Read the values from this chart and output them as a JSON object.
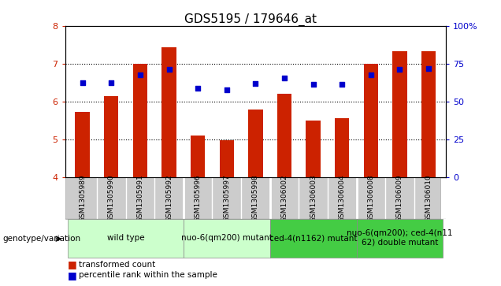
{
  "title": "GDS5195 / 179646_at",
  "samples": [
    "GSM1305989",
    "GSM1305990",
    "GSM1305991",
    "GSM1305992",
    "GSM1305996",
    "GSM1305997",
    "GSM1305998",
    "GSM1306002",
    "GSM1306003",
    "GSM1306004",
    "GSM1306008",
    "GSM1306009",
    "GSM1306010"
  ],
  "bar_values": [
    5.72,
    6.14,
    7.0,
    7.44,
    5.1,
    4.98,
    5.79,
    6.21,
    5.5,
    5.57,
    7.0,
    7.33,
    7.33
  ],
  "dot_values": [
    6.5,
    6.5,
    6.7,
    6.85,
    6.35,
    6.3,
    6.48,
    6.62,
    6.45,
    6.45,
    6.7,
    6.85,
    6.88
  ],
  "bar_bottom": 4.0,
  "ylim_left": [
    4,
    8
  ],
  "ylim_right": [
    0,
    100
  ],
  "yticks_left": [
    4,
    5,
    6,
    7,
    8
  ],
  "yticks_right": [
    0,
    25,
    50,
    75,
    100
  ],
  "bar_color": "#cc2200",
  "dot_color": "#0000cc",
  "groups": [
    {
      "label": "wild type",
      "start": 0,
      "end": 3,
      "color": "#ccffcc"
    },
    {
      "label": "nuo-6(qm200) mutant",
      "start": 4,
      "end": 6,
      "color": "#ccffcc"
    },
    {
      "label": "ced-4(n1162) mutant",
      "start": 7,
      "end": 9,
      "color": "#44cc44"
    },
    {
      "label": "nuo-6(qm200); ced-4(n11\n62) double mutant",
      "start": 10,
      "end": 12,
      "color": "#44cc44"
    }
  ],
  "group_boundaries": [
    3.5,
    6.5,
    9.5
  ],
  "genotype_label": "genotype/variation",
  "legend_bar_label": "transformed count",
  "legend_dot_label": "percentile rank within the sample",
  "bar_color_legend": "#cc2200",
  "dot_color_legend": "#0000cc",
  "tick_label_color_left": "#cc2200",
  "tick_label_color_right": "#0000cc",
  "title_fontsize": 11,
  "axis_fontsize": 8,
  "label_fontsize": 6.5,
  "group_fontsize": 7.5,
  "legend_fontsize": 7.5
}
